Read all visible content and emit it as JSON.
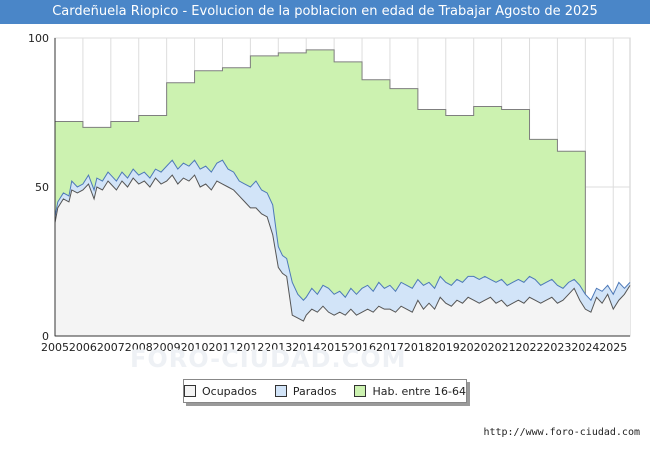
{
  "title": "Cardeñuela Riopico - Evolucion de la poblacion en edad de Trabajar Agosto de 2025",
  "source": "http://www.foro-ciudad.com",
  "watermark": "FORO-CIUDAD.COM",
  "colors": {
    "title_bg": "#4a86c8",
    "hab_fill": "#ccf2b0",
    "hab_line": "#7f7f7f",
    "parados_fill": "#d2e4f8",
    "parados_line": "#4d79b8",
    "ocupados_fill": "#f4f4f4",
    "ocupados_line": "#555555",
    "grid": "#dddddd"
  },
  "chart_data": {
    "type": "area",
    "title": "Cardeñuela Riopico - Evolucion de la poblacion en edad de Trabajar Agosto de 2025",
    "xlabel": "",
    "ylabel": "",
    "xlim": [
      2005,
      2025.6
    ],
    "ylim": [
      0,
      100
    ],
    "yticks": [
      0,
      50,
      100
    ],
    "xticks": [
      2005,
      2006,
      2007,
      2008,
      2009,
      2010,
      2011,
      2012,
      2013,
      2014,
      2015,
      2016,
      2017,
      2018,
      2019,
      2020,
      2021,
      2022,
      2023,
      2024,
      2025
    ],
    "grid": true,
    "legend_position": "bottom",
    "legend": [
      "Ocupados",
      "Parados",
      "Hab. entre 16-64"
    ],
    "hab_entre_16_64": {
      "name": "Hab. entre 16-64",
      "years": [
        2005,
        2006,
        2007,
        2008,
        2009,
        2010,
        2011,
        2012,
        2013,
        2014,
        2015,
        2016,
        2017,
        2018,
        2019,
        2020,
        2021,
        2022,
        2023
      ],
      "values": [
        72,
        70,
        72,
        74,
        85,
        89,
        90,
        94,
        95,
        96,
        92,
        86,
        83,
        76,
        74,
        77,
        76,
        66,
        62
      ]
    },
    "parados_plus_ocupados": {
      "name": "Parados",
      "x": [
        2005.0,
        2005.1,
        2005.3,
        2005.5,
        2005.6,
        2005.8,
        2006.0,
        2006.2,
        2006.4,
        2006.5,
        2006.7,
        2006.9,
        2007.0,
        2007.2,
        2007.4,
        2007.6,
        2007.8,
        2008.0,
        2008.2,
        2008.4,
        2008.6,
        2008.8,
        2009.0,
        2009.2,
        2009.4,
        2009.6,
        2009.8,
        2010.0,
        2010.2,
        2010.4,
        2010.6,
        2010.8,
        2011.0,
        2011.2,
        2011.4,
        2011.6,
        2011.8,
        2012.0,
        2012.2,
        2012.4,
        2012.6,
        2012.8,
        2013.0,
        2013.15,
        2013.3,
        2013.5,
        2013.7,
        2013.9,
        2014.0,
        2014.2,
        2014.4,
        2014.6,
        2014.8,
        2015.0,
        2015.2,
        2015.4,
        2015.6,
        2015.8,
        2016.0,
        2016.2,
        2016.4,
        2016.6,
        2016.8,
        2017.0,
        2017.2,
        2017.4,
        2017.6,
        2017.8,
        2018.0,
        2018.2,
        2018.4,
        2018.6,
        2018.8,
        2019.0,
        2019.2,
        2019.4,
        2019.6,
        2019.8,
        2020.0,
        2020.2,
        2020.4,
        2020.6,
        2020.8,
        2021.0,
        2021.2,
        2021.4,
        2021.6,
        2021.8,
        2022.0,
        2022.2,
        2022.4,
        2022.6,
        2022.8,
        2023.0,
        2023.2,
        2023.4,
        2023.6,
        2023.8,
        2024.0,
        2024.2,
        2024.4,
        2024.6,
        2024.8,
        2025.0,
        2025.2,
        2025.4,
        2025.6
      ],
      "values": [
        40,
        45,
        48,
        47,
        52,
        50,
        51,
        54,
        49,
        53,
        52,
        55,
        54,
        52,
        55,
        53,
        56,
        54,
        55,
        53,
        56,
        55,
        57,
        59,
        56,
        58,
        57,
        59,
        56,
        57,
        55,
        58,
        59,
        56,
        55,
        52,
        51,
        50,
        52,
        49,
        48,
        44,
        30,
        27,
        26,
        18,
        14,
        12,
        13,
        16,
        14,
        17,
        16,
        14,
        15,
        13,
        16,
        14,
        16,
        17,
        15,
        18,
        16,
        17,
        15,
        18,
        17,
        16,
        19,
        17,
        18,
        16,
        20,
        18,
        17,
        19,
        18,
        20,
        20,
        19,
        20,
        19,
        18,
        19,
        17,
        18,
        19,
        18,
        20,
        19,
        17,
        18,
        19,
        17,
        16,
        18,
        19,
        17,
        14,
        12,
        16,
        15,
        17,
        14,
        18,
        16,
        18
      ]
    },
    "ocupados": {
      "name": "Ocupados",
      "x": [
        2005.0,
        2005.1,
        2005.3,
        2005.5,
        2005.6,
        2005.8,
        2006.0,
        2006.2,
        2006.4,
        2006.5,
        2006.7,
        2006.9,
        2007.0,
        2007.2,
        2007.4,
        2007.6,
        2007.8,
        2008.0,
        2008.2,
        2008.4,
        2008.6,
        2008.8,
        2009.0,
        2009.2,
        2009.4,
        2009.6,
        2009.8,
        2010.0,
        2010.2,
        2010.4,
        2010.6,
        2010.8,
        2011.0,
        2011.2,
        2011.4,
        2011.6,
        2011.8,
        2012.0,
        2012.2,
        2012.4,
        2012.6,
        2012.8,
        2013.0,
        2013.15,
        2013.3,
        2013.5,
        2013.7,
        2013.9,
        2014.0,
        2014.2,
        2014.4,
        2014.6,
        2014.8,
        2015.0,
        2015.2,
        2015.4,
        2015.6,
        2015.8,
        2016.0,
        2016.2,
        2016.4,
        2016.6,
        2016.8,
        2017.0,
        2017.2,
        2017.4,
        2017.6,
        2017.8,
        2018.0,
        2018.2,
        2018.4,
        2018.6,
        2018.8,
        2019.0,
        2019.2,
        2019.4,
        2019.6,
        2019.8,
        2020.0,
        2020.2,
        2020.4,
        2020.6,
        2020.8,
        2021.0,
        2021.2,
        2021.4,
        2021.6,
        2021.8,
        2022.0,
        2022.2,
        2022.4,
        2022.6,
        2022.8,
        2023.0,
        2023.2,
        2023.4,
        2023.6,
        2023.8,
        2024.0,
        2024.2,
        2024.4,
        2024.6,
        2024.8,
        2025.0,
        2025.2,
        2025.4,
        2025.6
      ],
      "values": [
        38,
        43,
        46,
        45,
        49,
        48,
        49,
        51,
        46,
        50,
        49,
        52,
        51,
        49,
        52,
        50,
        53,
        51,
        52,
        50,
        53,
        51,
        52,
        54,
        51,
        53,
        52,
        54,
        50,
        51,
        49,
        52,
        51,
        50,
        49,
        47,
        45,
        43,
        43,
        41,
        40,
        34,
        23,
        21,
        20,
        7,
        6,
        5,
        7,
        9,
        8,
        10,
        8,
        7,
        8,
        7,
        9,
        7,
        8,
        9,
        8,
        10,
        9,
        9,
        8,
        10,
        9,
        8,
        12,
        9,
        11,
        9,
        13,
        11,
        10,
        12,
        11,
        13,
        12,
        11,
        12,
        13,
        11,
        12,
        10,
        11,
        12,
        11,
        13,
        12,
        11,
        12,
        13,
        11,
        12,
        14,
        16,
        12,
        9,
        8,
        13,
        11,
        14,
        9,
        12,
        14,
        17
      ]
    }
  },
  "legend_items": [
    {
      "label": "Ocupados",
      "color": "#f4f4f4"
    },
    {
      "label": "Parados",
      "color": "#d2e4f8"
    },
    {
      "label": "Hab. entre 16-64",
      "color": "#ccf2b0"
    }
  ]
}
